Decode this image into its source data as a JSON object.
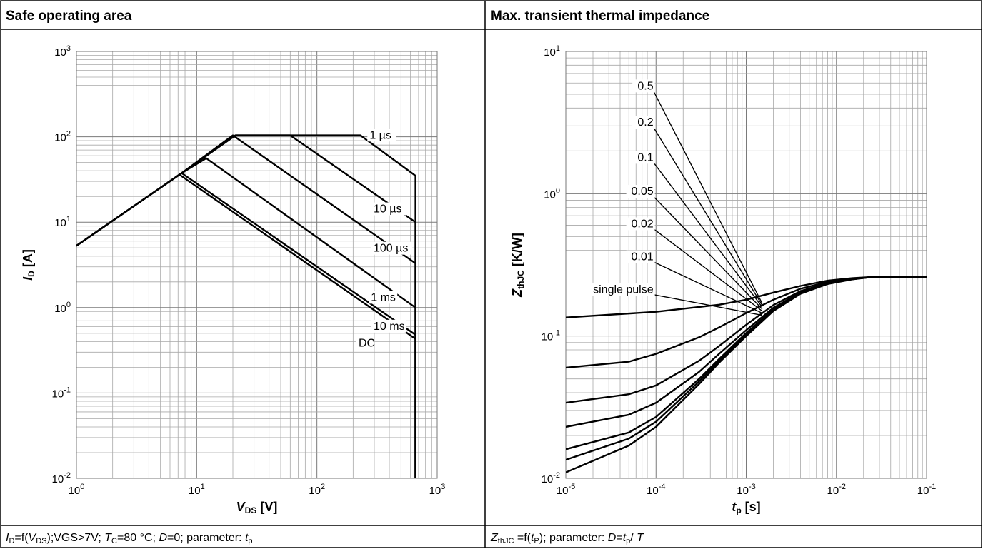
{
  "panels": [
    {
      "title": "Safe operating area",
      "caption": [
        {
          "t": "I",
          "i": true
        },
        {
          "t": "D",
          "sub": true
        },
        {
          "t": "=f("
        },
        {
          "t": "V",
          "i": true
        },
        {
          "t": "DS",
          "sub": true
        },
        {
          "t": ");VGS>7V;  "
        },
        {
          "t": "T",
          "i": true
        },
        {
          "t": "C",
          "sub": true
        },
        {
          "t": "=80 °C; "
        },
        {
          "t": "D",
          "i": true
        },
        {
          "t": "=0; parameter: "
        },
        {
          "t": "t",
          "i": true
        },
        {
          "t": "p",
          "sub": true
        }
      ]
    },
    {
      "title": "Max. transient thermal impedance",
      "caption": [
        {
          "t": "Z",
          "i": true
        },
        {
          "t": "thJC",
          "sub": true
        },
        {
          "t": " =f("
        },
        {
          "t": "t",
          "i": true
        },
        {
          "t": "P",
          "sub": true
        },
        {
          "t": "); parameter: "
        },
        {
          "t": "D",
          "i": true
        },
        {
          "t": "="
        },
        {
          "t": "t",
          "i": true
        },
        {
          "t": "p",
          "sub": true
        },
        {
          "t": "/ "
        },
        {
          "t": "T",
          "i": true
        }
      ]
    }
  ],
  "chart_data": [
    {
      "type": "line",
      "title": "Safe operating area",
      "x_scale": "log",
      "y_scale": "log",
      "xlim": [
        1,
        1000
      ],
      "ylim": [
        0.01,
        1000
      ],
      "x_ticks": [
        {
          "b": "10",
          "e": "0"
        },
        {
          "b": "10",
          "e": "1"
        },
        {
          "b": "10",
          "e": "2"
        },
        {
          "b": "10",
          "e": "3"
        }
      ],
      "y_ticks": [
        {
          "b": "10",
          "e": "-2"
        },
        {
          "b": "10",
          "e": "-1"
        },
        {
          "b": "10",
          "e": "0"
        },
        {
          "b": "10",
          "e": "1"
        },
        {
          "b": "10",
          "e": "2"
        },
        {
          "b": "10",
          "e": "3"
        }
      ],
      "xlabel": [
        {
          "t": "V",
          "i": true
        },
        {
          "t": "DS",
          "sub": true
        },
        {
          "t": " [V]"
        }
      ],
      "ylabel": [
        {
          "t": "I",
          "i": true
        },
        {
          "t": "D",
          "sub": true
        },
        {
          "t": " [A]"
        }
      ],
      "grid": true,
      "series": [
        {
          "name": "1 µs",
          "x": [
            1,
            7.5,
            21,
            230,
            660,
            660
          ],
          "y": [
            5.3,
            37.5,
            104,
            104,
            35,
            0.01
          ]
        },
        {
          "name": "10 µs",
          "x": [
            1,
            7.5,
            21,
            60,
            660,
            660
          ],
          "y": [
            5.3,
            37.5,
            104,
            104,
            10,
            0.01
          ]
        },
        {
          "name": "100 µs",
          "x": [
            1,
            7.5,
            20,
            660,
            660
          ],
          "y": [
            5.3,
            37.5,
            104,
            3.3,
            0.01
          ]
        },
        {
          "name": "1 ms",
          "x": [
            1,
            7.5,
            12,
            660,
            660
          ],
          "y": [
            5.3,
            37.5,
            56,
            1.0,
            0.01
          ]
        },
        {
          "name": "10 ms",
          "x": [
            1,
            7.5,
            660,
            660
          ],
          "y": [
            5.3,
            37.5,
            0.48,
            0.01
          ]
        },
        {
          "name": "DC",
          "x": [
            1,
            7.2,
            660,
            660
          ],
          "y": [
            5.3,
            36,
            0.43,
            0.01
          ]
        }
      ],
      "annotations": [
        {
          "text": "1 µs",
          "x": 370,
          "y": 95
        },
        {
          "text": "10 µs",
          "x": 400,
          "y": 13
        },
        {
          "text": "100 µs",
          "x": 400,
          "y": 4.5
        },
        {
          "text": "1 ms",
          "x": 380,
          "y": 1.2
        },
        {
          "text": "10 ms",
          "x": 400,
          "y": 0.55
        },
        {
          "text": "DC",
          "x": 300,
          "y": 0.35
        }
      ]
    },
    {
      "type": "line",
      "title": "Max. transient thermal impedance",
      "x_scale": "log",
      "y_scale": "log",
      "xlim": [
        1e-05,
        0.1
      ],
      "ylim": [
        0.01,
        10
      ],
      "x_ticks": [
        {
          "b": "10",
          "e": "-5"
        },
        {
          "b": "10",
          "e": "-4"
        },
        {
          "b": "10",
          "e": "-3"
        },
        {
          "b": "10",
          "e": "-2"
        },
        {
          "b": "10",
          "e": "-1"
        }
      ],
      "y_ticks": [
        {
          "b": "10",
          "e": "-2"
        },
        {
          "b": "10",
          "e": "-1"
        },
        {
          "b": "10",
          "e": "0"
        },
        {
          "b": "10",
          "e": "1"
        }
      ],
      "xlabel": [
        {
          "t": "t",
          "i": true
        },
        {
          "t": "p",
          "sub": true
        },
        {
          "t": " [s]"
        }
      ],
      "ylabel": [
        {
          "t": "Z",
          "i": true
        },
        {
          "t": "thJC",
          "sub": true
        },
        {
          "t": " [K/W]"
        }
      ],
      "grid": true,
      "series": [
        {
          "name": "0.5",
          "x": [
            1e-05,
            0.0001,
            0.0005,
            0.001,
            0.002,
            0.004,
            0.008,
            0.015,
            0.025,
            0.05,
            0.1
          ],
          "y": [
            0.135,
            0.148,
            0.166,
            0.18,
            0.202,
            0.225,
            0.245,
            0.255,
            0.26,
            0.26,
            0.26
          ]
        },
        {
          "name": "0.2",
          "x": [
            1e-05,
            5e-05,
            0.0001,
            0.0003,
            0.0005,
            0.001,
            0.002,
            0.004,
            0.008,
            0.015,
            0.025,
            0.05,
            0.1
          ],
          "y": [
            0.06,
            0.066,
            0.075,
            0.098,
            0.115,
            0.145,
            0.18,
            0.215,
            0.24,
            0.253,
            0.26,
            0.26,
            0.26
          ]
        },
        {
          "name": "0.1",
          "x": [
            1e-05,
            5e-05,
            0.0001,
            0.0003,
            0.0005,
            0.001,
            0.002,
            0.004,
            0.008,
            0.015,
            0.025,
            0.05,
            0.1
          ],
          "y": [
            0.034,
            0.039,
            0.045,
            0.067,
            0.085,
            0.12,
            0.165,
            0.207,
            0.236,
            0.252,
            0.26,
            0.26,
            0.26
          ]
        },
        {
          "name": "0.05",
          "x": [
            1e-05,
            5e-05,
            0.0001,
            0.0003,
            0.0005,
            0.001,
            0.002,
            0.004,
            0.008,
            0.015,
            0.025,
            0.05,
            0.1
          ],
          "y": [
            0.023,
            0.028,
            0.034,
            0.056,
            0.075,
            0.11,
            0.158,
            0.203,
            0.234,
            0.251,
            0.26,
            0.26,
            0.26
          ]
        },
        {
          "name": "0.02",
          "x": [
            1e-05,
            5e-05,
            0.0001,
            0.0003,
            0.0005,
            0.001,
            0.002,
            0.004,
            0.008,
            0.015,
            0.025,
            0.05,
            0.1
          ],
          "y": [
            0.016,
            0.021,
            0.027,
            0.05,
            0.069,
            0.105,
            0.154,
            0.2,
            0.233,
            0.251,
            0.26,
            0.26,
            0.26
          ]
        },
        {
          "name": "0.01",
          "x": [
            1e-05,
            5e-05,
            0.0001,
            0.0003,
            0.0005,
            0.001,
            0.002,
            0.004,
            0.008,
            0.015,
            0.025,
            0.05,
            0.1
          ],
          "y": [
            0.0135,
            0.019,
            0.025,
            0.048,
            0.067,
            0.103,
            0.152,
            0.199,
            0.233,
            0.251,
            0.26,
            0.26,
            0.26
          ]
        },
        {
          "name": "single pulse",
          "x": [
            1e-05,
            5e-05,
            0.0001,
            0.0003,
            0.0005,
            0.001,
            0.002,
            0.004,
            0.008,
            0.015,
            0.025,
            0.05,
            0.1
          ],
          "y": [
            0.011,
            0.017,
            0.023,
            0.046,
            0.065,
            0.1,
            0.15,
            0.198,
            0.232,
            0.25,
            0.26,
            0.26,
            0.26
          ]
        }
      ],
      "annotations": [
        {
          "text": "0.5",
          "x": 7.8e-05,
          "y": 5.4
        },
        {
          "text": "0.2",
          "x": 7.8e-05,
          "y": 3.0
        },
        {
          "text": "0.1",
          "x": 7.8e-05,
          "y": 1.7
        },
        {
          "text": "0.05",
          "x": 7.8e-05,
          "y": 0.98
        },
        {
          "text": "0.02",
          "x": 7.8e-05,
          "y": 0.58
        },
        {
          "text": "0.01",
          "x": 7.8e-05,
          "y": 0.34
        },
        {
          "text": "single pulse",
          "x": 7.8e-05,
          "y": 0.2
        }
      ]
    }
  ]
}
